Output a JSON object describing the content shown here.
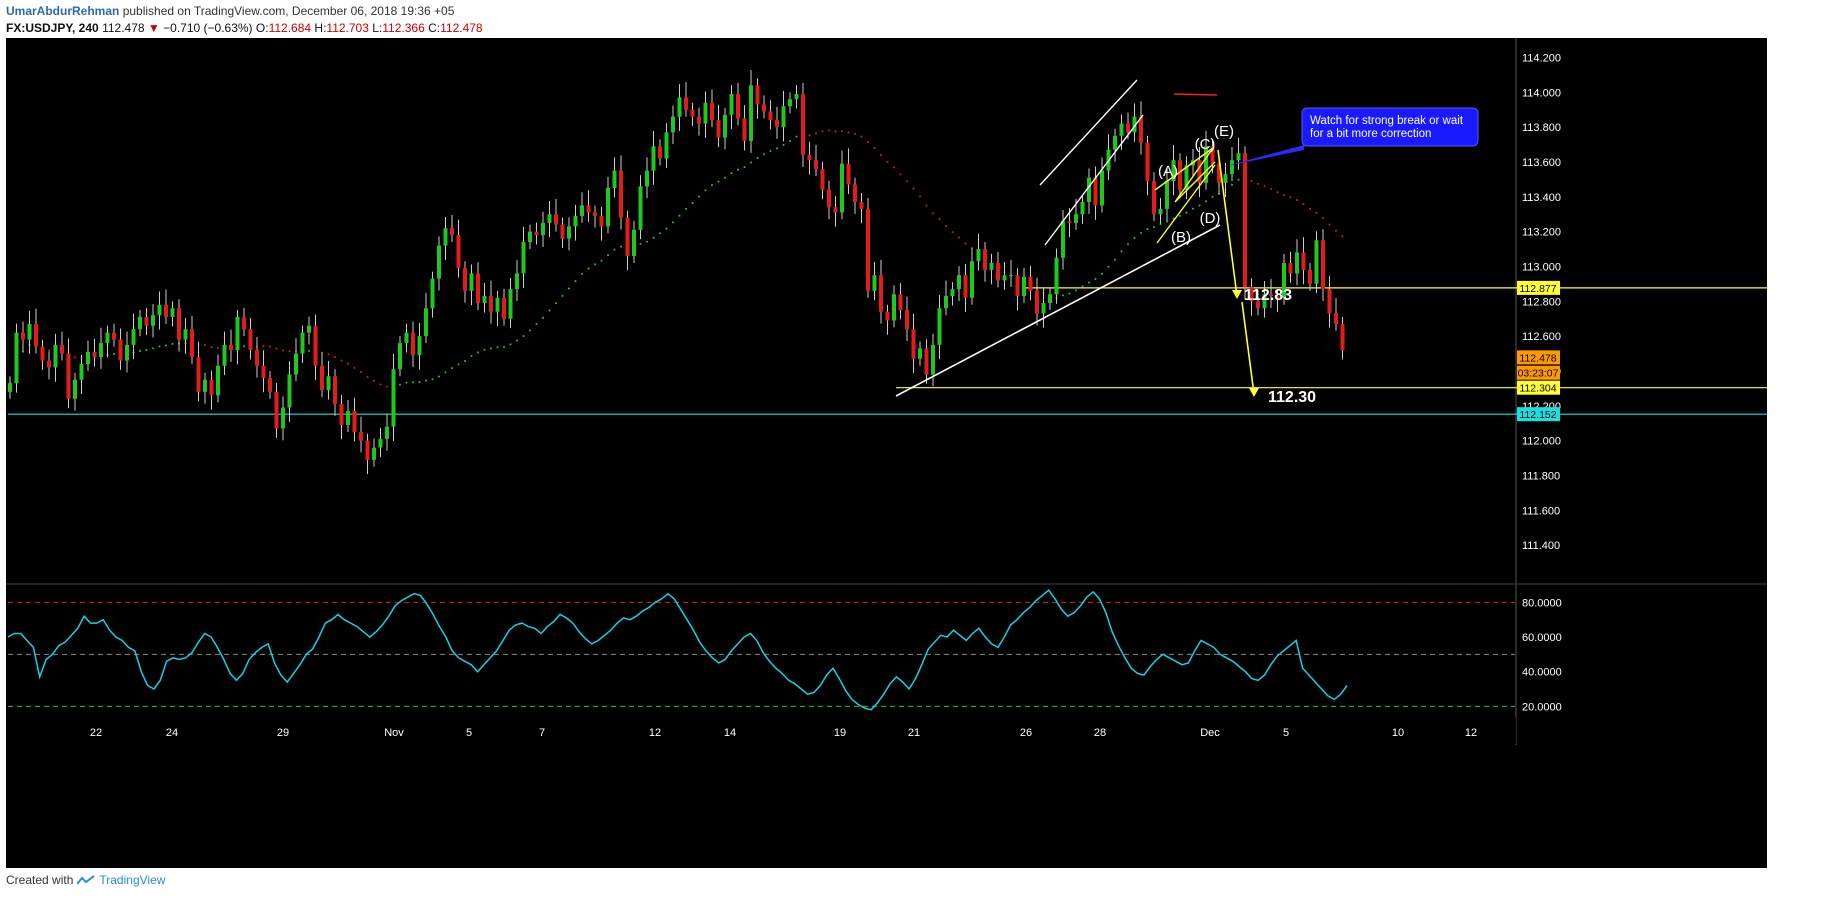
{
  "header": {
    "author": "UmarAbdurRehman",
    "published_text": "published on TradingView.com, December 06, 2018 19:36 +05",
    "symbol": "FX:USDJPY, 240",
    "last": "112.478",
    "change": "−0.710 (−0.63%)",
    "o_label": "O:",
    "o_value": "112.684",
    "h_label": "H:",
    "h_value": "112.703",
    "l_label": "L:",
    "l_value": "112.366",
    "c_label": "C:",
    "c_value": "112.478"
  },
  "footer": {
    "created_with": "Created with",
    "brand": "TradingView"
  },
  "colors": {
    "bg": "#000000",
    "up": "#1ec81e",
    "down": "#e31b1b",
    "grid_text": "#ffffff",
    "yellow": "#ffff33",
    "cyan": "#18e0e0",
    "rsi": "#18d0e8",
    "white": "#ffffff",
    "annot_box": "#1a1aff",
    "ma_red": "#e02020",
    "ma_green": "#20d020"
  },
  "chart_data": [
    {
      "type": "candlestick",
      "ylim": [
        111.2,
        114.3
      ],
      "y_ticks": [
        "114.200",
        "114.000",
        "113.800",
        "113.600",
        "113.400",
        "113.200",
        "113.000",
        "112.800",
        "112.600",
        "112.400",
        "112.200",
        "112.000",
        "111.800",
        "111.600",
        "111.400"
      ],
      "x_ticks": [
        "22",
        "24",
        "29",
        "Nov",
        "5",
        "7",
        "12",
        "14",
        "19",
        "21",
        "26",
        "28",
        "Dec",
        "5",
        "10",
        "12"
      ],
      "price_labels": [
        {
          "text": "112.877",
          "value": 112.877,
          "color": "#ffff33"
        },
        {
          "text": "112.478",
          "value": 112.478,
          "color": "#ff9900"
        },
        {
          "text": "03:23:07",
          "value": 112.39,
          "color": "#ff9900"
        },
        {
          "text": "112.304",
          "value": 112.304,
          "color": "#ffff33"
        },
        {
          "text": "112.152",
          "value": 112.152,
          "color": "#18e0e0"
        }
      ],
      "horizontal_levels": [
        {
          "value": 112.877,
          "color": "#ffff33"
        },
        {
          "value": 112.304,
          "color": "#ffff33"
        },
        {
          "value": 112.152,
          "color": "#18e0e0"
        }
      ],
      "annotations": {
        "wave_labels": [
          "(A)",
          "(B)",
          "(C)",
          "(D)",
          "(E)"
        ],
        "targets": [
          "112.83",
          "112.30"
        ],
        "callout": "Watch for strong break or wait for a bit more correction"
      },
      "closes": [
        112.33,
        112.62,
        112.58,
        112.67,
        112.54,
        112.46,
        112.42,
        112.55,
        112.5,
        112.24,
        112.35,
        112.44,
        112.51,
        112.48,
        112.56,
        112.62,
        112.58,
        112.46,
        112.55,
        112.64,
        112.71,
        112.66,
        112.72,
        112.78,
        112.71,
        112.76,
        112.58,
        112.64,
        112.48,
        112.28,
        112.35,
        112.26,
        112.43,
        112.55,
        112.52,
        112.71,
        112.64,
        112.52,
        112.43,
        112.36,
        112.28,
        112.07,
        112.19,
        112.38,
        112.5,
        112.62,
        112.66,
        112.43,
        112.29,
        112.37,
        112.21,
        112.09,
        112.17,
        112.05,
        112.0,
        111.89,
        111.96,
        112.01,
        112.08,
        112.41,
        112.56,
        112.62,
        112.49,
        112.6,
        112.76,
        112.93,
        113.12,
        113.22,
        113.18,
        112.99,
        112.86,
        112.96,
        112.79,
        112.83,
        112.74,
        112.82,
        112.7,
        112.87,
        112.96,
        113.14,
        113.2,
        113.18,
        113.25,
        113.3,
        113.24,
        113.16,
        113.23,
        113.29,
        113.35,
        113.31,
        113.29,
        113.23,
        113.45,
        113.55,
        113.28,
        113.06,
        113.21,
        113.46,
        113.55,
        113.69,
        113.62,
        113.77,
        113.86,
        113.97,
        113.9,
        113.86,
        113.82,
        113.94,
        113.84,
        113.74,
        113.87,
        113.99,
        113.85,
        113.72,
        114.04,
        113.93,
        113.89,
        113.84,
        113.8,
        113.92,
        113.96,
        113.99,
        113.64,
        113.61,
        113.56,
        113.44,
        113.34,
        113.31,
        113.59,
        113.47,
        113.37,
        113.33,
        112.86,
        112.95,
        112.74,
        112.69,
        112.84,
        112.75,
        112.64,
        112.47,
        112.53,
        112.38,
        112.55,
        112.76,
        112.83,
        112.87,
        112.95,
        112.82,
        113.03,
        113.1,
        112.98,
        113.02,
        112.92,
        112.95,
        112.95,
        112.83,
        112.94,
        112.86,
        112.73,
        112.79,
        112.84,
        113.05,
        113.26,
        113.25,
        113.3,
        113.37,
        113.51,
        113.35,
        113.55,
        113.67,
        113.75,
        113.82,
        113.77,
        113.86,
        113.71,
        113.49,
        113.3,
        113.33,
        113.49,
        113.61,
        113.44,
        113.58,
        113.61,
        113.48,
        113.69,
        113.59,
        113.48,
        113.53,
        113.61,
        113.65,
        112.88,
        112.8,
        112.76,
        112.84,
        112.83,
        112.82,
        113.02,
        112.96,
        113.08,
        112.98,
        112.9,
        113.15,
        112.87,
        112.73,
        112.67,
        112.52
      ]
    },
    {
      "type": "line",
      "name": "",
      "ylim": [
        15,
        90
      ],
      "y_ticks": [
        "80.0000",
        "60.0000",
        "40.0000",
        "20.0000"
      ],
      "levels": [
        80,
        50,
        20
      ],
      "values": [
        60,
        62,
        62,
        58,
        54,
        37,
        47,
        50,
        55,
        57,
        61,
        65,
        72,
        68,
        68,
        70,
        64,
        60,
        58,
        54,
        52,
        40,
        32,
        30,
        35,
        46,
        48,
        47,
        48,
        51,
        57,
        62,
        60,
        54,
        47,
        39,
        35,
        39,
        47,
        51,
        54,
        56,
        45,
        38,
        34,
        39,
        44,
        50,
        53,
        60,
        68,
        70,
        73,
        70,
        68,
        66,
        63,
        60,
        63,
        67,
        72,
        78,
        81,
        83,
        85,
        84,
        79,
        73,
        66,
        60,
        52,
        48,
        46,
        44,
        40,
        44,
        48,
        52,
        58,
        64,
        67,
        68,
        66,
        65,
        62,
        66,
        69,
        73,
        71,
        68,
        63,
        59,
        56,
        58,
        61,
        64,
        68,
        71,
        70,
        72,
        75,
        77,
        80,
        82,
        85,
        82,
        76,
        70,
        64,
        57,
        52,
        48,
        45,
        47,
        52,
        56,
        60,
        62,
        58,
        51,
        46,
        42,
        39,
        35,
        33,
        30,
        27,
        28,
        32,
        38,
        42,
        36,
        29,
        24,
        21,
        19,
        18,
        22,
        27,
        33,
        37,
        34,
        30,
        36,
        44,
        53,
        57,
        61,
        60,
        64,
        61,
        58,
        62,
        65,
        60,
        56,
        54,
        60,
        67,
        70,
        74,
        77,
        81,
        84,
        87,
        82,
        76,
        72,
        74,
        78,
        83,
        86,
        82,
        74,
        63,
        55,
        48,
        42,
        39,
        38,
        43,
        47,
        50,
        48,
        46,
        44,
        45,
        52,
        58,
        56,
        54,
        50,
        48,
        46,
        43,
        40,
        36,
        35,
        38,
        44,
        49,
        52,
        55,
        58,
        42,
        38,
        34,
        30,
        26,
        24,
        27,
        32
      ]
    }
  ]
}
